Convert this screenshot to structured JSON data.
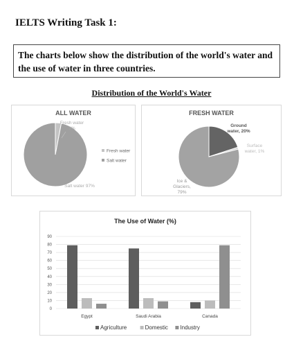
{
  "page": {
    "title": "IELTS Writing Task 1:",
    "task_line1": "The charts below show the distribution of the world's water and",
    "task_line2": "the use of water in three countries.",
    "section_title": "Distribution of the World's Water"
  },
  "chart_data": [
    {
      "type": "pie",
      "title": "ALL WATER",
      "slices": [
        {
          "label": "Fresh water",
          "value": 3,
          "display": "Fresh water 3%",
          "color": "#c3c3c3"
        },
        {
          "label": "Salt water",
          "value": 97,
          "display": "Salt water 97%",
          "color": "#a0a0a0"
        }
      ],
      "legend": [
        "Fresh water",
        "Salt water"
      ],
      "legend_position": "right"
    },
    {
      "type": "pie",
      "title": "FRESH WATER",
      "slices": [
        {
          "label": "Ground water",
          "value": 20,
          "display": "Ground water, 20%",
          "color": "#646464"
        },
        {
          "label": "Surface water",
          "value": 1,
          "display": "Surface water, 1%",
          "color": "#d0d0d0"
        },
        {
          "label": "Ice & Glaciers",
          "value": 79,
          "display": "Ice & Glaciers, 79%",
          "color": "#a3a3a3"
        }
      ]
    },
    {
      "type": "bar",
      "title": "The Use of Water (%)",
      "categories": [
        "Egypt",
        "Saudi Arabia",
        "Canada"
      ],
      "series": [
        {
          "name": "Agriculture",
          "values": [
            79,
            75,
            8
          ],
          "color": "#5e5e5e"
        },
        {
          "name": "Domestic",
          "values": [
            13,
            13,
            10
          ],
          "color": "#bcbcbc"
        },
        {
          "name": "Industry",
          "values": [
            6,
            9,
            79
          ],
          "color": "#8f8f8f"
        }
      ],
      "ylim": [
        0,
        90
      ],
      "yticks": [
        0,
        10,
        20,
        30,
        40,
        50,
        60,
        70,
        80,
        90
      ],
      "grid": true,
      "legend_position": "bottom"
    }
  ]
}
